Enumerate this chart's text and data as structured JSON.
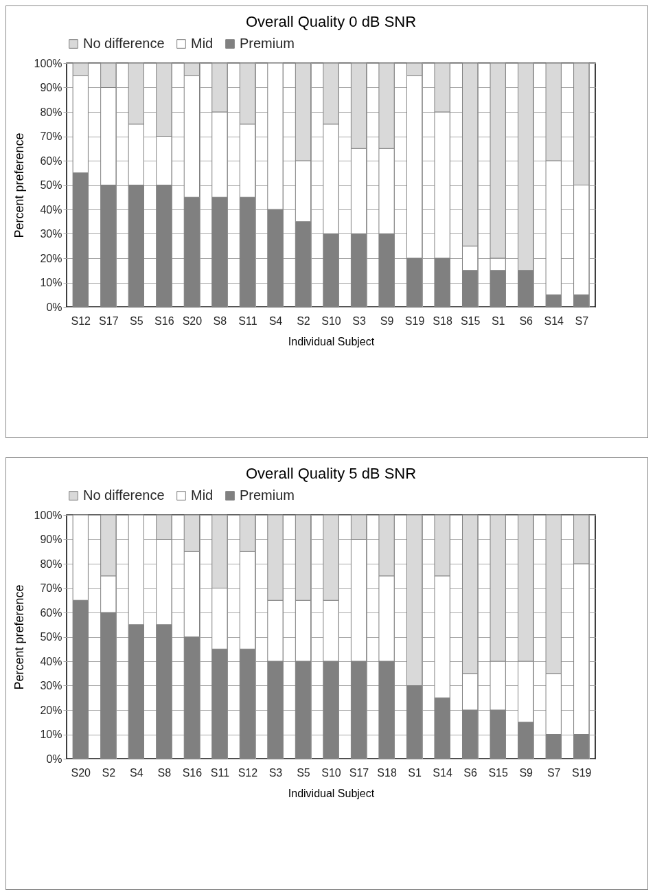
{
  "chart_data": [
    {
      "type": "bar",
      "title": "Overall Quality 0 dB SNR",
      "xlabel": "Individual Subject",
      "ylabel": "Percent preference",
      "stacked": true,
      "grid": true,
      "legend": "top",
      "categories": [
        "S12",
        "S17",
        "S5",
        "S16",
        "S20",
        "S8",
        "S11",
        "S4",
        "S2",
        "S10",
        "S3",
        "S9",
        "S19",
        "S18",
        "S15",
        "S1",
        "S6",
        "S14",
        "S7"
      ],
      "ylim": [
        0,
        100
      ],
      "yticks": [
        {
          "value": 0,
          "label": "0%"
        },
        {
          "value": 10,
          "label": "10%"
        },
        {
          "value": 20,
          "label": "20%"
        },
        {
          "value": 30,
          "label": "30%"
        },
        {
          "value": 40,
          "label": "40%"
        },
        {
          "value": 50,
          "label": "50%"
        },
        {
          "value": 60,
          "label": "60%"
        },
        {
          "value": 70,
          "label": "70%"
        },
        {
          "value": 80,
          "label": "80%"
        },
        {
          "value": 90,
          "label": "90%"
        },
        {
          "value": 100,
          "label": "100%"
        }
      ],
      "series": [
        {
          "name": "Premium",
          "color": "#808080",
          "values": [
            55,
            50,
            50,
            50,
            45,
            45,
            45,
            40,
            35,
            30,
            30,
            30,
            20,
            20,
            15,
            15,
            15,
            5,
            5
          ]
        },
        {
          "name": "Mid",
          "color": "#ffffff",
          "values": [
            40,
            40,
            25,
            20,
            50,
            35,
            30,
            60,
            25,
            45,
            35,
            35,
            75,
            60,
            10,
            5,
            0,
            55,
            45
          ]
        },
        {
          "name": "No difference",
          "color": "#d9d9d9",
          "values": [
            5,
            10,
            25,
            30,
            5,
            20,
            25,
            0,
            40,
            25,
            35,
            35,
            5,
            20,
            75,
            80,
            85,
            40,
            50
          ]
        }
      ]
    },
    {
      "type": "bar",
      "title": "Overall Quality 5 dB SNR",
      "xlabel": "Individual Subject",
      "ylabel": "Percent preference",
      "stacked": true,
      "grid": true,
      "legend": "top",
      "categories": [
        "S20",
        "S2",
        "S4",
        "S8",
        "S16",
        "S11",
        "S12",
        "S3",
        "S5",
        "S10",
        "S17",
        "S18",
        "S1",
        "S14",
        "S6",
        "S15",
        "S9",
        "S7",
        "S19"
      ],
      "ylim": [
        0,
        100
      ],
      "yticks": [
        {
          "value": 0,
          "label": "0%"
        },
        {
          "value": 10,
          "label": "10%"
        },
        {
          "value": 20,
          "label": "20%"
        },
        {
          "value": 30,
          "label": "30%"
        },
        {
          "value": 40,
          "label": "40%"
        },
        {
          "value": 50,
          "label": "50%"
        },
        {
          "value": 60,
          "label": "60%"
        },
        {
          "value": 70,
          "label": "70%"
        },
        {
          "value": 80,
          "label": "80%"
        },
        {
          "value": 90,
          "label": "90%"
        },
        {
          "value": 100,
          "label": "100%"
        }
      ],
      "series": [
        {
          "name": "Premium",
          "color": "#808080",
          "values": [
            65,
            60,
            55,
            55,
            50,
            45,
            45,
            40,
            40,
            40,
            40,
            40,
            30,
            25,
            20,
            20,
            15,
            10,
            10
          ]
        },
        {
          "name": "Mid",
          "color": "#ffffff",
          "values": [
            35,
            15,
            45,
            35,
            35,
            25,
            40,
            25,
            25,
            25,
            50,
            35,
            0,
            50,
            15,
            20,
            25,
            25,
            70
          ]
        },
        {
          "name": "No difference",
          "color": "#d9d9d9",
          "values": [
            0,
            25,
            0,
            10,
            15,
            30,
            15,
            35,
            35,
            35,
            10,
            25,
            70,
            25,
            65,
            60,
            60,
            65,
            20
          ]
        }
      ]
    }
  ]
}
